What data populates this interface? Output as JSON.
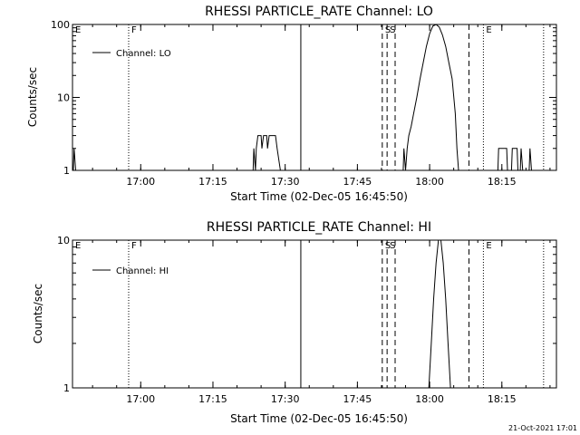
{
  "footer": {
    "timestamp": "21-Oct-2021 17:01"
  },
  "chart_data": [
    {
      "type": "line",
      "title": "RHESSI PARTICLE_RATE Channel: LO",
      "xlabel": "Start Time (02-Dec-05 16:45:50)",
      "ylabel": "Counts/sec",
      "yscale": "log",
      "ylim": [
        1,
        100
      ],
      "xlim": [
        "16:45:50",
        "18:26:20"
      ],
      "x_ticks": [
        "17:00",
        "17:15",
        "17:30",
        "17:45",
        "18:00",
        "18:15"
      ],
      "y_ticks": [
        "1",
        "10",
        "100"
      ],
      "legend": {
        "position": "top-left",
        "entries": [
          "Channel: LO"
        ]
      },
      "markers": [
        {
          "label": "E",
          "time": "16:45:50",
          "style": "dotted"
        },
        {
          "label": "F",
          "time": "16:57:30",
          "style": "dotted"
        },
        {
          "label": "",
          "time": "17:33:15",
          "style": "solid"
        },
        {
          "label": "S",
          "time": "17:50:10",
          "style": "dashed"
        },
        {
          "label": "S",
          "time": "17:51:10",
          "style": "dashed"
        },
        {
          "label": "",
          "time": "17:52:50",
          "style": "dashed"
        },
        {
          "label": "",
          "time": "18:08:10",
          "style": "dashed"
        },
        {
          "label": "E",
          "time": "18:11:10",
          "style": "dotted"
        },
        {
          "label": "",
          "time": "18:23:40",
          "style": "dotted"
        }
      ],
      "series": [
        {
          "points": [
            [
              "16:46:00",
              1
            ],
            [
              "16:46:10",
              2
            ],
            [
              "16:46:30",
              1
            ],
            [
              "17:23:20",
              1
            ],
            [
              "17:23:30",
              2
            ],
            [
              "17:23:50",
              1
            ],
            [
              "17:24:00",
              2
            ],
            [
              "17:24:20",
              3
            ],
            [
              "17:25:00",
              3
            ],
            [
              "17:25:10",
              2
            ],
            [
              "17:25:30",
              3
            ],
            [
              "17:26:10",
              3
            ],
            [
              "17:26:20",
              2
            ],
            [
              "17:26:40",
              3
            ],
            [
              "17:28:00",
              3
            ],
            [
              "17:28:20",
              2
            ],
            [
              "17:29:00",
              1
            ],
            [
              "17:54:30",
              1
            ],
            [
              "17:54:40",
              2
            ],
            [
              "17:55:00",
              1
            ],
            [
              "17:55:20",
              2
            ],
            [
              "17:55:40",
              3
            ],
            [
              "17:56:10",
              4
            ],
            [
              "17:56:40",
              6
            ],
            [
              "17:57:20",
              10
            ],
            [
              "17:58:00",
              18
            ],
            [
              "17:58:40",
              30
            ],
            [
              "17:59:20",
              50
            ],
            [
              "18:00:00",
              75
            ],
            [
              "18:00:40",
              95
            ],
            [
              "18:01:20",
              100
            ],
            [
              "18:02:00",
              92
            ],
            [
              "18:02:40",
              72
            ],
            [
              "18:03:20",
              50
            ],
            [
              "18:04:00",
              30
            ],
            [
              "18:04:40",
              18
            ],
            [
              "18:05:20",
              6
            ],
            [
              "18:05:40",
              2
            ],
            [
              "18:06:00",
              1
            ],
            [
              "18:14:10",
              1
            ],
            [
              "18:14:20",
              2
            ],
            [
              "18:16:00",
              2
            ],
            [
              "18:16:10",
              1
            ],
            [
              "18:17:00",
              1
            ],
            [
              "18:17:10",
              2
            ],
            [
              "18:18:10",
              2
            ],
            [
              "18:18:20",
              1
            ],
            [
              "18:18:50",
              1
            ],
            [
              "18:19:00",
              2
            ],
            [
              "18:19:20",
              1
            ],
            [
              "18:20:40",
              1
            ],
            [
              "18:20:50",
              2
            ],
            [
              "18:21:10",
              1
            ]
          ]
        }
      ]
    },
    {
      "type": "line",
      "title": "RHESSI PARTICLE_RATE Channel: HI",
      "xlabel": "Start Time (02-Dec-05 16:45:50)",
      "ylabel": "Counts/sec",
      "yscale": "log",
      "ylim": [
        1,
        10
      ],
      "xlim": [
        "16:45:50",
        "18:26:20"
      ],
      "x_ticks": [
        "17:00",
        "17:15",
        "17:30",
        "17:45",
        "18:00",
        "18:15"
      ],
      "y_ticks": [
        "1",
        "10"
      ],
      "legend": {
        "position": "top-left",
        "entries": [
          "Channel: HI"
        ]
      },
      "markers": [
        {
          "label": "E",
          "time": "16:45:50",
          "style": "dotted"
        },
        {
          "label": "F",
          "time": "16:57:30",
          "style": "dotted"
        },
        {
          "label": "",
          "time": "17:33:15",
          "style": "solid"
        },
        {
          "label": "S",
          "time": "17:50:10",
          "style": "dashed"
        },
        {
          "label": "S",
          "time": "17:51:10",
          "style": "dashed"
        },
        {
          "label": "",
          "time": "17:52:50",
          "style": "dashed"
        },
        {
          "label": "",
          "time": "18:08:10",
          "style": "dashed"
        },
        {
          "label": "E",
          "time": "18:11:10",
          "style": "dotted"
        },
        {
          "label": "",
          "time": "18:23:40",
          "style": "dotted"
        }
      ],
      "series": [
        {
          "points": [
            [
              "17:59:50",
              1
            ],
            [
              "18:00:20",
              2
            ],
            [
              "18:00:50",
              4
            ],
            [
              "18:01:20",
              7
            ],
            [
              "18:01:50",
              10
            ],
            [
              "18:02:20",
              10
            ],
            [
              "18:02:50",
              7
            ],
            [
              "18:03:20",
              4
            ],
            [
              "18:03:50",
              2
            ],
            [
              "18:04:20",
              1
            ]
          ]
        }
      ]
    }
  ]
}
